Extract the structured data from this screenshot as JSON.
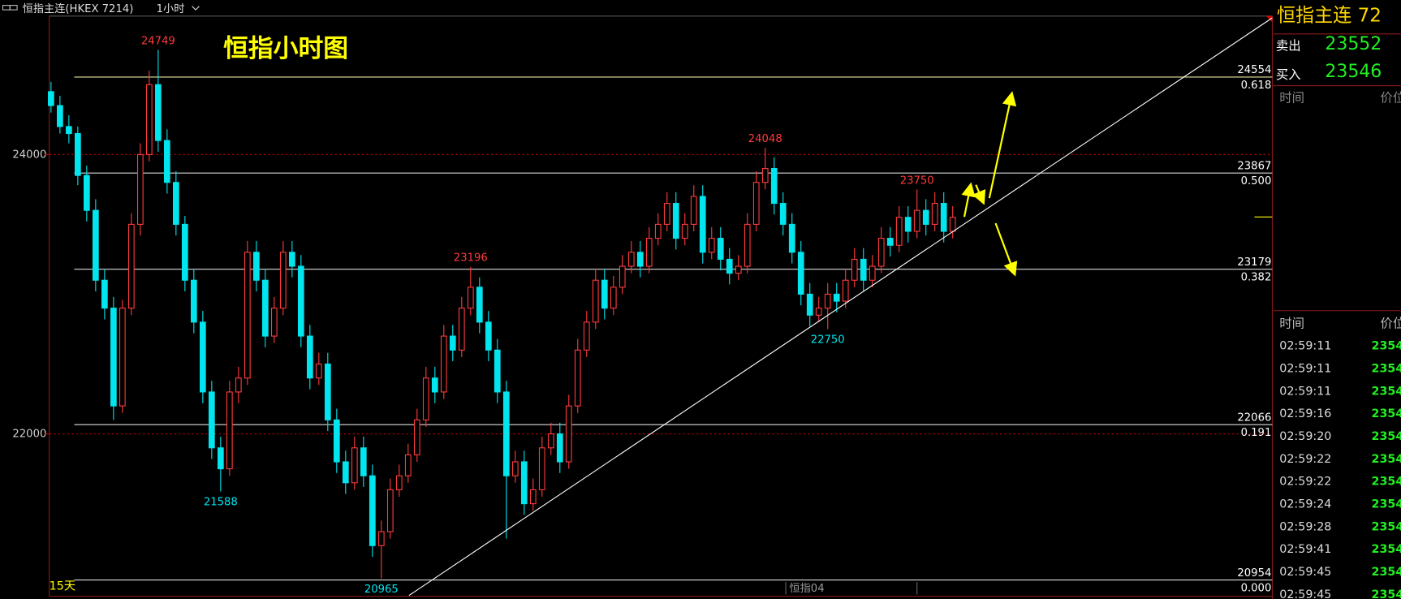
{
  "header": {
    "symbol": "恒指主连(HKEX 7214)",
    "period": "1小时"
  },
  "chart_data": {
    "type": "candlestick",
    "title": "恒指小时图",
    "up_color": "#ff3b3b",
    "down_color": "#00e5ee",
    "ylim": [
      20850,
      24978
    ],
    "yticks": [
      22000,
      24000
    ],
    "grid": true,
    "fib_levels": [
      {
        "price": 24554,
        "ratio": "0.618"
      },
      {
        "price": 23867,
        "ratio": "0.500"
      },
      {
        "price": 23179,
        "ratio": "0.382"
      },
      {
        "price": 22066,
        "ratio": "0.191"
      },
      {
        "price": 20954,
        "ratio": "0.000"
      }
    ],
    "footer_left": "15天",
    "footer_center": "恒指04",
    "candles": [
      [
        24450,
        24520,
        24300,
        24350
      ],
      [
        24350,
        24420,
        24150,
        24200
      ],
      [
        24200,
        24280,
        24080,
        24150
      ],
      [
        24150,
        24200,
        23780,
        23850
      ],
      [
        23850,
        23920,
        23520,
        23600
      ],
      [
        23600,
        23680,
        23020,
        23100
      ],
      [
        23100,
        23180,
        22820,
        22900
      ],
      [
        22900,
        22980,
        22100,
        22200
      ],
      [
        22200,
        22960,
        22150,
        22900
      ],
      [
        22900,
        23580,
        22850,
        23500
      ],
      [
        23500,
        24080,
        23420,
        24000
      ],
      [
        24000,
        24600,
        23950,
        24500
      ],
      [
        24500,
        24749,
        24020,
        24100
      ],
      [
        24100,
        24180,
        23720,
        23800
      ],
      [
        23800,
        23880,
        23420,
        23500
      ],
      [
        23500,
        23560,
        23020,
        23100
      ],
      [
        23100,
        23180,
        22720,
        22800
      ],
      [
        22800,
        22880,
        22220,
        22300
      ],
      [
        22300,
        22380,
        21820,
        21900
      ],
      [
        21900,
        21980,
        21588,
        21750
      ],
      [
        21750,
        22380,
        21700,
        22300
      ],
      [
        22300,
        22480,
        22220,
        22400
      ],
      [
        22400,
        23380,
        22350,
        23300
      ],
      [
        23300,
        23380,
        23020,
        23100
      ],
      [
        23100,
        23180,
        22620,
        22700
      ],
      [
        22700,
        22980,
        22650,
        22900
      ],
      [
        22900,
        23380,
        22850,
        23300
      ],
      [
        23300,
        23380,
        23120,
        23200
      ],
      [
        23200,
        23280,
        22620,
        22700
      ],
      [
        22700,
        22780,
        22320,
        22400
      ],
      [
        22400,
        22580,
        22350,
        22500
      ],
      [
        22500,
        22580,
        22020,
        22100
      ],
      [
        22100,
        22180,
        21720,
        21800
      ],
      [
        21800,
        21880,
        21570,
        21650
      ],
      [
        21650,
        21980,
        21600,
        21900
      ],
      [
        21900,
        21980,
        21620,
        21700
      ],
      [
        21700,
        21780,
        21120,
        21200
      ],
      [
        21200,
        21380,
        20965,
        21300
      ],
      [
        21300,
        21680,
        21250,
        21600
      ],
      [
        21600,
        21780,
        21550,
        21700
      ],
      [
        21700,
        21930,
        21650,
        21850
      ],
      [
        21850,
        22180,
        21800,
        22100
      ],
      [
        22100,
        22480,
        22050,
        22400
      ],
      [
        22400,
        22480,
        22220,
        22300
      ],
      [
        22300,
        22780,
        22250,
        22700
      ],
      [
        22700,
        22780,
        22520,
        22600
      ],
      [
        22600,
        22980,
        22550,
        22900
      ],
      [
        22900,
        23196,
        22850,
        23050
      ],
      [
        23050,
        23120,
        22720,
        22800
      ],
      [
        22800,
        22880,
        22520,
        22600
      ],
      [
        22600,
        22680,
        22220,
        22300
      ],
      [
        22300,
        22380,
        21250,
        21700
      ],
      [
        21700,
        21880,
        21650,
        21800
      ],
      [
        21800,
        21880,
        21420,
        21500
      ],
      [
        21500,
        21680,
        21450,
        21600
      ],
      [
        21600,
        21980,
        21550,
        21900
      ],
      [
        21900,
        22080,
        21850,
        22000
      ],
      [
        22000,
        22080,
        21720,
        21800
      ],
      [
        21800,
        22280,
        21750,
        22200
      ],
      [
        22200,
        22680,
        22150,
        22600
      ],
      [
        22600,
        22880,
        22550,
        22800
      ],
      [
        22800,
        23180,
        22750,
        23100
      ],
      [
        23100,
        23180,
        22820,
        22900
      ],
      [
        22900,
        23130,
        22850,
        23050
      ],
      [
        23050,
        23280,
        23000,
        23200
      ],
      [
        23200,
        23380,
        23150,
        23300
      ],
      [
        23300,
        23380,
        23120,
        23200
      ],
      [
        23200,
        23480,
        23150,
        23400
      ],
      [
        23400,
        23580,
        23350,
        23500
      ],
      [
        23500,
        23730,
        23450,
        23650
      ],
      [
        23650,
        23730,
        23320,
        23400
      ],
      [
        23400,
        23580,
        23350,
        23500
      ],
      [
        23500,
        23780,
        23450,
        23700
      ],
      [
        23700,
        23780,
        23220,
        23300
      ],
      [
        23300,
        23480,
        23250,
        23400
      ],
      [
        23400,
        23480,
        23170,
        23250
      ],
      [
        23250,
        23330,
        23070,
        23150
      ],
      [
        23150,
        23280,
        23100,
        23200
      ],
      [
        23200,
        23580,
        23150,
        23500
      ],
      [
        23500,
        23880,
        23450,
        23800
      ],
      [
        23800,
        24048,
        23750,
        23900
      ],
      [
        23900,
        23980,
        23570,
        23650
      ],
      [
        23650,
        23730,
        23420,
        23500
      ],
      [
        23500,
        23580,
        23220,
        23300
      ],
      [
        23300,
        23380,
        22920,
        23000
      ],
      [
        23000,
        23080,
        22770,
        22850
      ],
      [
        22850,
        22980,
        22800,
        22900
      ],
      [
        22900,
        23080,
        22750,
        23000
      ],
      [
        23000,
        23080,
        22870,
        22950
      ],
      [
        22950,
        23180,
        22900,
        23100
      ],
      [
        23100,
        23330,
        23050,
        23250
      ],
      [
        23250,
        23330,
        23020,
        23100
      ],
      [
        23100,
        23280,
        23050,
        23200
      ],
      [
        23200,
        23480,
        23150,
        23400
      ],
      [
        23400,
        23480,
        23270,
        23350
      ],
      [
        23350,
        23630,
        23300,
        23550
      ],
      [
        23550,
        23630,
        23370,
        23450
      ],
      [
        23450,
        23750,
        23400,
        23600
      ],
      [
        23600,
        23680,
        23420,
        23500
      ],
      [
        23500,
        23730,
        23450,
        23650
      ],
      [
        23650,
        23730,
        23370,
        23450
      ],
      [
        23450,
        23630,
        23400,
        23550
      ]
    ],
    "extreme_labels": [
      "chart_data.candles.12.1",
      "chart_data.candles.19.2",
      "chart_data.candles.37.2",
      "chart_data.candles.47.1",
      "chart_data.candles.80.1",
      "chart_data.candles.87.2",
      "chart_data.candles.97.1"
    ]
  },
  "quote_panel": {
    "title": "恒指主连 72",
    "sell_label": "卖出",
    "sell": 23552,
    "buy_label": "买入",
    "buy": 23546,
    "header_time": "时间",
    "header_price": "价位",
    "ticks_header_time": "时间",
    "ticks_header_price": "价位",
    "ticks": [
      [
        "02:59:11",
        "2354"
      ],
      [
        "02:59:11",
        "2354"
      ],
      [
        "02:59:11",
        "2354"
      ],
      [
        "02:59:16",
        "2354"
      ],
      [
        "02:59:20",
        "2354"
      ],
      [
        "02:59:22",
        "2354"
      ],
      [
        "02:59:22",
        "2354"
      ],
      [
        "02:59:24",
        "2354"
      ],
      [
        "02:59:28",
        "2354"
      ],
      [
        "02:59:41",
        "2354"
      ],
      [
        "02:59:45",
        "2354"
      ],
      [
        "02:59:45",
        "2354"
      ]
    ]
  }
}
